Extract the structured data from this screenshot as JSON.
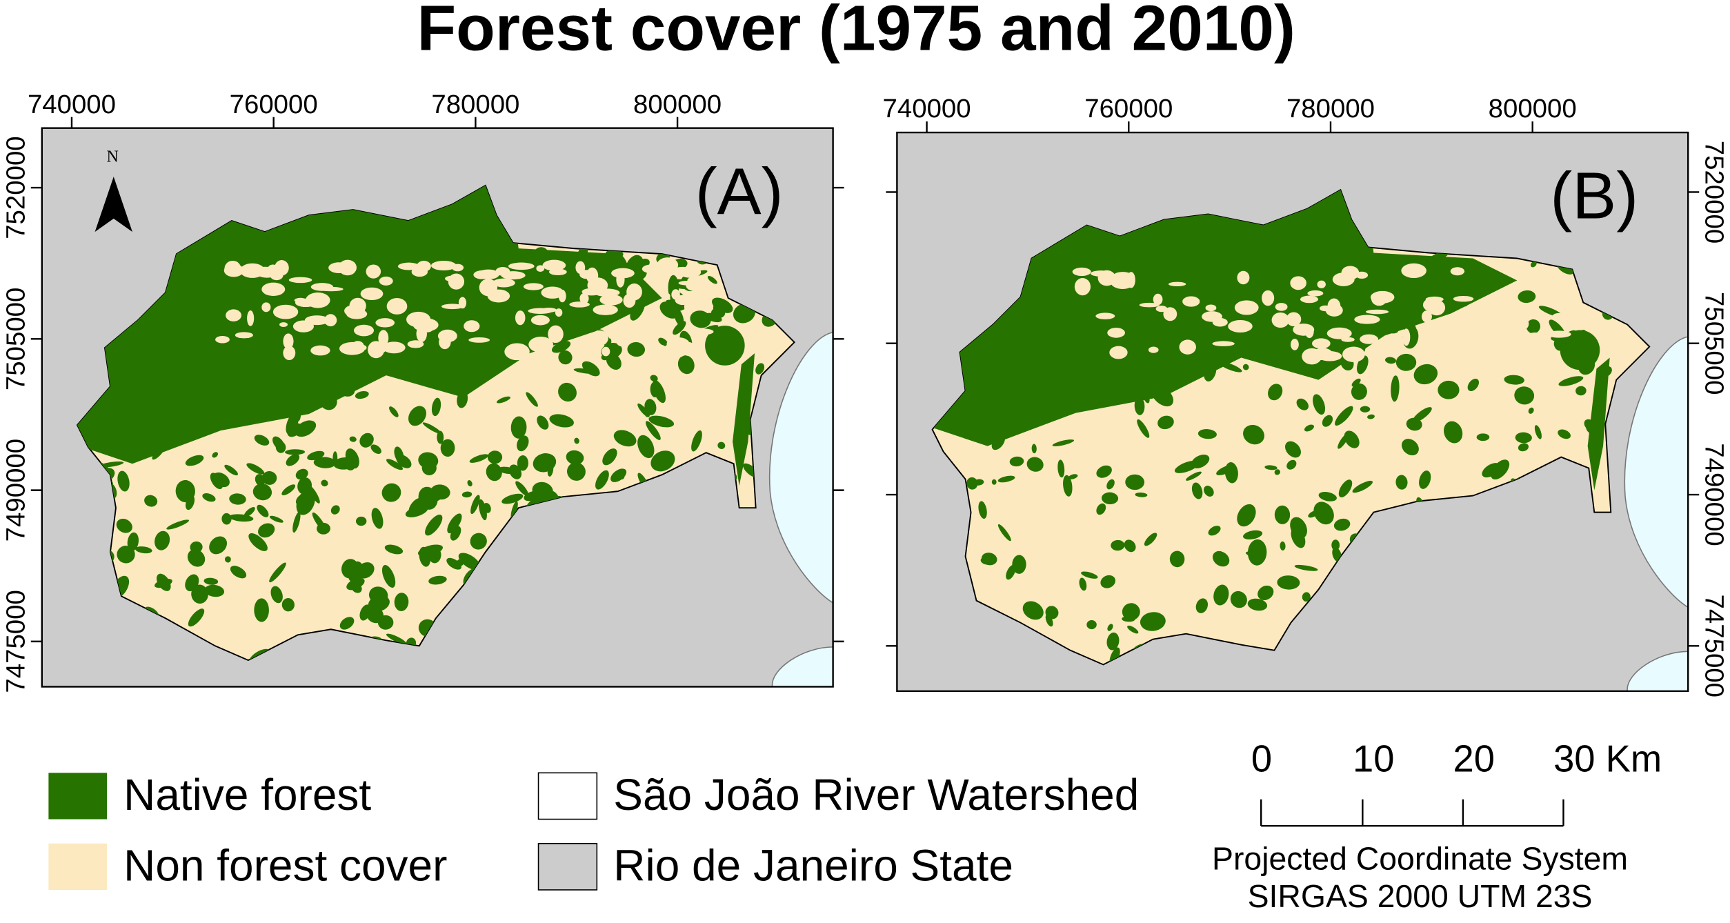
{
  "title": "Forest cover (1975 and 2010)",
  "north_label": "N",
  "panels": [
    {
      "label": "(A)",
      "x_ticks": [
        "740000",
        "760000",
        "780000",
        "800000"
      ],
      "y_ticks": [
        "7520000",
        "7505000",
        "7490000",
        "7475000"
      ]
    },
    {
      "label": "(B)",
      "x_ticks": [
        "740000",
        "760000",
        "780000",
        "800000"
      ],
      "y_ticks": [
        "7520000",
        "7505000",
        "7490000",
        "7475000"
      ]
    }
  ],
  "legend": [
    {
      "label": "Native forest",
      "color": "#267300"
    },
    {
      "label": "Non forest cover",
      "color": "#fce9bf"
    },
    {
      "label": "São João River Watershed",
      "color": "#ffffff"
    },
    {
      "label": "Rio de Janeiro State",
      "color": "#cccccc"
    }
  ],
  "scale_bar": {
    "labels": [
      "0",
      "10",
      "20",
      "30 Km"
    ]
  },
  "coordinate_system": [
    "Projected Coordinate System",
    "SIRGAS 2000 UTM 23S"
  ]
}
